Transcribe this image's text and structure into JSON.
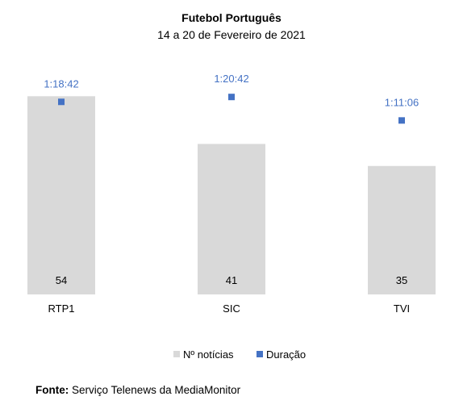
{
  "colors": {
    "bar": "#d9d9d9",
    "marker": "#4472c4",
    "duration_text": "#4472c4",
    "text": "#000000"
  },
  "chart_data": {
    "type": "bar",
    "title": "Futebol Português",
    "subtitle": "14 a 20 de Fevereiro de 2021",
    "categories": [
      "RTP1",
      "SIC",
      "TVI"
    ],
    "series": [
      {
        "name": "Nº notícias",
        "kind": "bar",
        "values": [
          54,
          41,
          35
        ]
      },
      {
        "name": "Duração",
        "kind": "marker",
        "values_seconds": [
          4722,
          4842,
          4266
        ],
        "labels": [
          "1:18:42",
          "1:20:42",
          "1:11:06"
        ]
      }
    ],
    "ylim_bars": [
      0,
      60
    ],
    "ylim_duration_seconds": [
      0,
      5400
    ],
    "grid": false,
    "legend_position": "bottom",
    "legend": [
      {
        "name": "Nº notícias",
        "symbol": "bar"
      },
      {
        "name": "Duração",
        "symbol": "marker"
      }
    ]
  },
  "footer": {
    "label": "Fonte:",
    "text": "Serviço Telenews da MediaMonitor"
  }
}
